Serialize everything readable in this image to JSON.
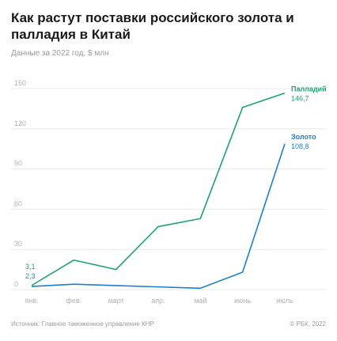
{
  "header": {
    "title": "Как растут поставки российского золота и палладия в Китай",
    "subtitle": "Данные за 2022 год, $ млн"
  },
  "footer": {
    "source": "Источник: Главное таможенное управление КНР",
    "copyright": "© РБК, 2022"
  },
  "colors": {
    "palladium": "#1aa37a",
    "gold": "#1a7fd4",
    "grid": "#e9e9e9",
    "tick": "#b0b0b0"
  },
  "chart_data": {
    "type": "line",
    "title": "Как растут поставки российского золота и палладия в Китай",
    "subtitle": "Данные за 2022 год, $ млн",
    "categories": [
      "янв.",
      "фев.",
      "март",
      "апр.",
      "май",
      "июнь",
      "июль"
    ],
    "y_ticks": [
      "0",
      "30",
      "60",
      "90",
      "120",
      "150"
    ],
    "ylim": [
      0,
      150
    ],
    "grid": true,
    "series": [
      {
        "name": "Палладий",
        "color": "#1aa37a",
        "values": [
          3.1,
          22,
          15,
          47,
          53,
          136,
          146.7
        ],
        "end_label": "146,7",
        "start_label": "3,1"
      },
      {
        "name": "Золото",
        "color": "#1a7fd4",
        "values": [
          2.3,
          4,
          3,
          2,
          1,
          13,
          108.8
        ],
        "end_label": "108,8",
        "start_label": "2,3"
      }
    ]
  }
}
